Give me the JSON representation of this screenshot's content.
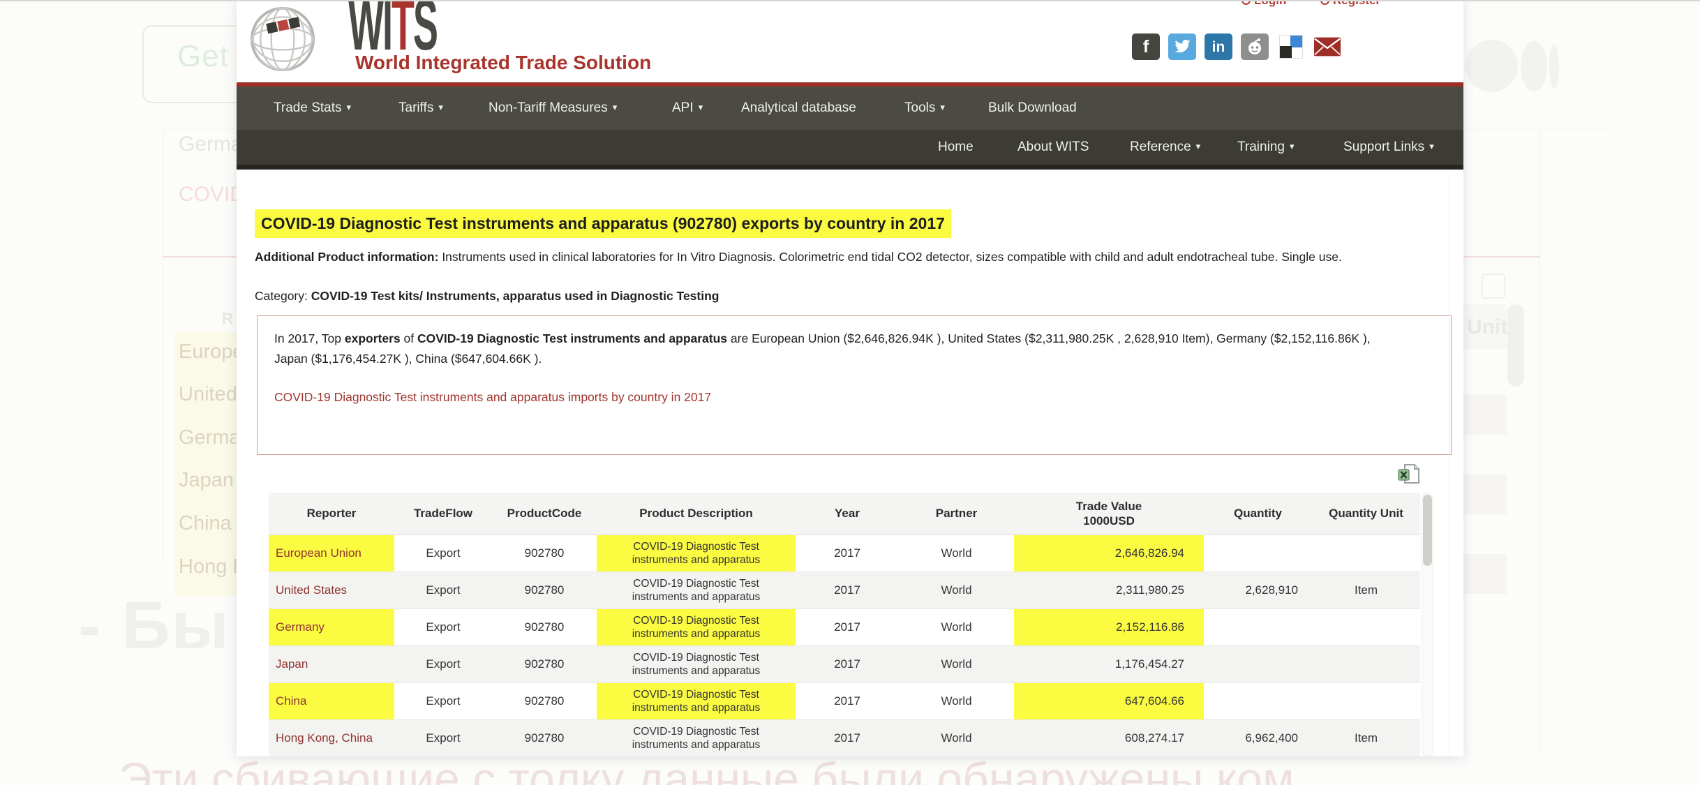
{
  "browser": {
    "login_label": "Login",
    "register_label": "Register"
  },
  "brand": {
    "logo_part1": "WI",
    "logo_part2": "T",
    "logo_part3": "S",
    "tagline": "World Integrated Trade Solution"
  },
  "social_icons": [
    "facebook-icon",
    "twitter-icon",
    "linkedin-icon",
    "reddit-icon",
    "delicious-icon",
    "email-icon"
  ],
  "nav_primary": [
    {
      "label": "Trade Stats",
      "dropdown": true
    },
    {
      "label": "Tariffs",
      "dropdown": true
    },
    {
      "label": "Non-Tariff Measures",
      "dropdown": true
    },
    {
      "label": "API",
      "dropdown": true
    },
    {
      "label": "Analytical database",
      "dropdown": false
    },
    {
      "label": "Tools",
      "dropdown": true
    },
    {
      "label": "Bulk Download",
      "dropdown": false
    }
  ],
  "nav_secondary": [
    {
      "label": "Home",
      "dropdown": false
    },
    {
      "label": "About WITS",
      "dropdown": false
    },
    {
      "label": "Reference",
      "dropdown": true
    },
    {
      "label": "Training",
      "dropdown": true
    },
    {
      "label": "Support Links",
      "dropdown": true
    }
  ],
  "page": {
    "title": "COVID-19 Diagnostic Test instruments and apparatus (902780) exports by country in 2017",
    "additional_info_label": "Additional Product information:",
    "additional_info_text": " Instruments used in clinical laboratories for In Vitro Diagnosis. Colorimetric end tidal CO2 detector, sizes compatible with child and adult endotracheal tube. Single use.",
    "category_label": "Category: ",
    "category_text": "COVID-19 Test kits/ Instruments, apparatus used in Diagnostic Testing",
    "summary": {
      "prefix": "In 2017, Top ",
      "bold1": "exporters",
      "mid": " of ",
      "bold2": "COVID-19 Diagnostic Test instruments and apparatus",
      "suffix": " are European Union ($2,646,826.94K ), United States ($2,311,980.25K , 2,628,910 Item), Germany ($2,152,116.86K ), Japan ($1,176,454.27K ), China ($647,604.66K )."
    },
    "imports_link": "COVID-19 Diagnostic Test instruments and apparatus imports by country in 2017"
  },
  "table": {
    "columns": [
      "Reporter",
      "TradeFlow",
      "ProductCode",
      "Product Description",
      "Year",
      "Partner",
      "Trade Value\n1000USD",
      "Quantity",
      "Quantity Unit"
    ],
    "rows": [
      [
        "European Union",
        "Export",
        "902780",
        "COVID-19 Diagnostic Test instruments and apparatus",
        "2017",
        "World",
        "2,646,826.94",
        "",
        ""
      ],
      [
        "United States",
        "Export",
        "902780",
        "COVID-19 Diagnostic Test instruments and apparatus",
        "2017",
        "World",
        "2,311,980.25",
        "2,628,910",
        "Item"
      ],
      [
        "Germany",
        "Export",
        "902780",
        "COVID-19 Diagnostic Test instruments and apparatus",
        "2017",
        "World",
        "2,152,116.86",
        "",
        ""
      ],
      [
        "Japan",
        "Export",
        "902780",
        "COVID-19 Diagnostic Test instruments and apparatus",
        "2017",
        "World",
        "1,176,454.27",
        "",
        ""
      ],
      [
        "China",
        "Export",
        "902780",
        "COVID-19 Diagnostic Test instruments and apparatus",
        "2017",
        "World",
        "647,604.66",
        "",
        ""
      ],
      [
        "Hong Kong, China",
        "Export",
        "902780",
        "COVID-19 Diagnostic Test instruments and apparatus",
        "2017",
        "World",
        "608,274.17",
        "6,962,400",
        "Item"
      ]
    ]
  },
  "faded_background": {
    "search_text": "Get s",
    "line1": "German",
    "line2": "COVID-",
    "table_header_fragment": "R",
    "unit_fragment": "Unit",
    "country_list": [
      "Europe",
      "United",
      "German",
      "Japan",
      "China",
      "Hong K"
    ],
    "big_heading": "- Бы",
    "bottom_text": "Эти сбивающие с толку данные были обнаружены ком"
  },
  "colors": {
    "accent_red": "#9e2d26",
    "nav_primary_bg": "#4b4a43",
    "nav_secondary_bg": "#3c3b34",
    "nav_footer_strip": "#26251f",
    "highlight_yellow": "#fbfb42",
    "link_red": "#a0342e",
    "reporter_red": "#8f3430",
    "logo_gray": "#4a4a45",
    "logo_red": "#a8342c",
    "row_alt_gray": "#f3f3f1"
  }
}
